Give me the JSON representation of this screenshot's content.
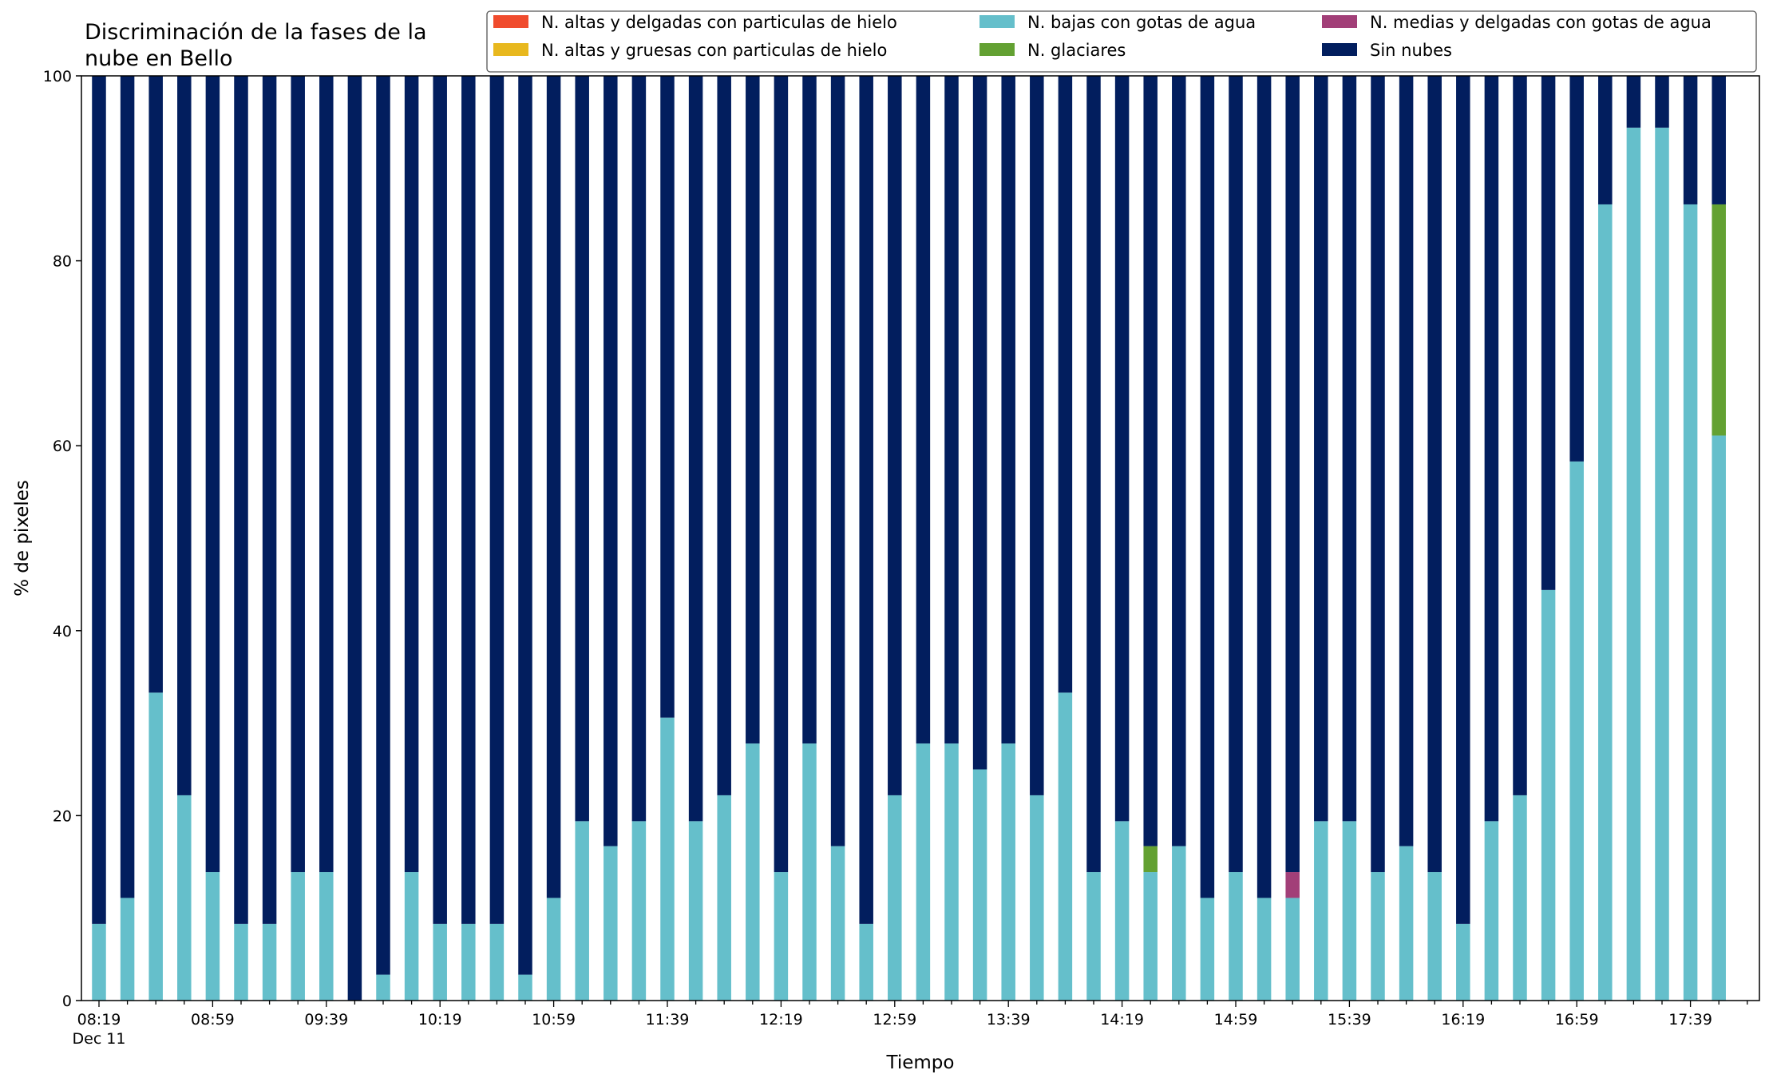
{
  "chart_data": {
    "type": "bar",
    "stacked": true,
    "title_lines": [
      "Discriminación de la fases de la",
      "nube en Bello"
    ],
    "xlabel": "Tiempo",
    "ylabel": "% de pixeles",
    "ylim": [
      0,
      100
    ],
    "y_ticks": [
      0,
      20,
      40,
      60,
      80,
      100
    ],
    "grid": false,
    "legend_position": "top-right",
    "legend_columns": 3,
    "x_tick_labels": [
      "08:19",
      "08:59",
      "09:39",
      "10:19",
      "10:59",
      "11:39",
      "12:19",
      "12:59",
      "13:39",
      "14:19",
      "14:59",
      "15:39",
      "16:19",
      "16:59",
      "17:39"
    ],
    "x_sublabel": "Dec 11",
    "categories": [
      "08:19",
      "08:29",
      "08:39",
      "08:49",
      "08:59",
      "09:09",
      "09:19",
      "09:29",
      "09:39",
      "09:49",
      "09:59",
      "10:09",
      "10:19",
      "10:29",
      "10:39",
      "10:49",
      "10:59",
      "11:09",
      "11:19",
      "11:29",
      "11:39",
      "11:49",
      "11:59",
      "12:09",
      "12:19",
      "12:29",
      "12:39",
      "12:49",
      "12:59",
      "13:09",
      "13:19",
      "13:29",
      "13:39",
      "13:49",
      "13:59",
      "14:09",
      "14:19",
      "14:29",
      "14:39",
      "14:49",
      "14:59",
      "15:09",
      "15:19",
      "15:29",
      "15:39",
      "15:49",
      "15:59",
      "16:09",
      "16:19",
      "16:29",
      "16:39",
      "16:49",
      "16:59",
      "17:09",
      "17:19",
      "17:29",
      "17:39",
      "17:49"
    ],
    "series": [
      {
        "name": "N. altas y delgadas con particulas de hielo",
        "color": "#f04b2d",
        "values": [
          0,
          0,
          0,
          0,
          0,
          0,
          0,
          0,
          0,
          0,
          0,
          0,
          0,
          0,
          0,
          0,
          0,
          0,
          0,
          0,
          0,
          0,
          0,
          0,
          0,
          0,
          0,
          0,
          0,
          0,
          0,
          0,
          0,
          0,
          0,
          0,
          0,
          0,
          0,
          0,
          0,
          0,
          0,
          0,
          0,
          0,
          0,
          0,
          0,
          0,
          0,
          0,
          0,
          0,
          0,
          0,
          0,
          0
        ]
      },
      {
        "name": "N. altas y gruesas con particulas de hielo",
        "color": "#e8b81e",
        "values": [
          0,
          0,
          0,
          0,
          0,
          0,
          0,
          0,
          0,
          0,
          0,
          0,
          0,
          0,
          0,
          0,
          0,
          0,
          0,
          0,
          0,
          0,
          0,
          0,
          0,
          0,
          0,
          0,
          0,
          0,
          0,
          0,
          0,
          0,
          0,
          0,
          0,
          0,
          0,
          0,
          0,
          0,
          0,
          0,
          0,
          0,
          0,
          0,
          0,
          0,
          0,
          0,
          0,
          0,
          0,
          0,
          0,
          0
        ]
      },
      {
        "name": "N. bajas con gotas de agua",
        "color": "#65bfcb",
        "values": [
          8.3,
          11.1,
          33.3,
          22.2,
          13.9,
          8.3,
          8.3,
          13.9,
          13.9,
          0,
          2.8,
          13.9,
          8.3,
          8.3,
          8.3,
          2.8,
          11.1,
          19.4,
          16.7,
          19.4,
          30.6,
          19.4,
          22.2,
          27.8,
          13.9,
          27.8,
          16.7,
          8.3,
          22.2,
          27.8,
          27.8,
          25.0,
          27.8,
          22.2,
          33.3,
          13.9,
          19.4,
          13.9,
          16.7,
          11.1,
          13.9,
          11.1,
          11.1,
          19.4,
          19.4,
          13.9,
          16.7,
          13.9,
          8.3,
          19.4,
          22.2,
          44.4,
          58.3,
          86.1,
          94.4,
          94.4,
          86.1,
          61.1
        ]
      },
      {
        "name": "N. glaciares",
        "color": "#63a132",
        "values": [
          0,
          0,
          0,
          0,
          0,
          0,
          0,
          0,
          0,
          0,
          0,
          0,
          0,
          0,
          0,
          0,
          0,
          0,
          0,
          0,
          0,
          0,
          0,
          0,
          0,
          0,
          0,
          0,
          0,
          0,
          0,
          0,
          0,
          0,
          0,
          0,
          0,
          2.8,
          0,
          0,
          0,
          0,
          0,
          0,
          0,
          0,
          0,
          0,
          0,
          0,
          0,
          0,
          0,
          0,
          0,
          0,
          0,
          25.0
        ]
      },
      {
        "name": "N. medias y delgadas con gotas de agua",
        "color": "#a23f78",
        "values": [
          0,
          0,
          0,
          0,
          0,
          0,
          0,
          0,
          0,
          0,
          0,
          0,
          0,
          0,
          0,
          0,
          0,
          0,
          0,
          0,
          0,
          0,
          0,
          0,
          0,
          0,
          0,
          0,
          0,
          0,
          0,
          0,
          0,
          0,
          0,
          0,
          0,
          0,
          0,
          0,
          0,
          0,
          2.8,
          0,
          0,
          0,
          0,
          0,
          0,
          0,
          0,
          0,
          0,
          0,
          0,
          0,
          0,
          0
        ]
      },
      {
        "name": "Sin nubes",
        "color": "#021e5e",
        "values": [
          91.7,
          88.9,
          66.7,
          77.8,
          86.1,
          91.7,
          91.7,
          86.1,
          86.1,
          100,
          97.2,
          86.1,
          91.7,
          91.7,
          91.7,
          97.2,
          88.9,
          80.6,
          83.3,
          80.6,
          69.4,
          80.6,
          77.8,
          72.2,
          86.1,
          72.2,
          83.3,
          91.7,
          77.8,
          72.2,
          72.2,
          75.0,
          72.2,
          77.8,
          66.7,
          86.1,
          80.6,
          83.3,
          83.3,
          88.9,
          86.1,
          88.9,
          86.1,
          80.6,
          80.6,
          86.1,
          83.3,
          86.1,
          91.7,
          80.6,
          77.8,
          55.6,
          41.7,
          13.9,
          5.6,
          5.6,
          13.9,
          13.9
        ]
      }
    ],
    "legend_order": [
      0,
      1,
      2,
      3,
      4,
      5
    ]
  }
}
